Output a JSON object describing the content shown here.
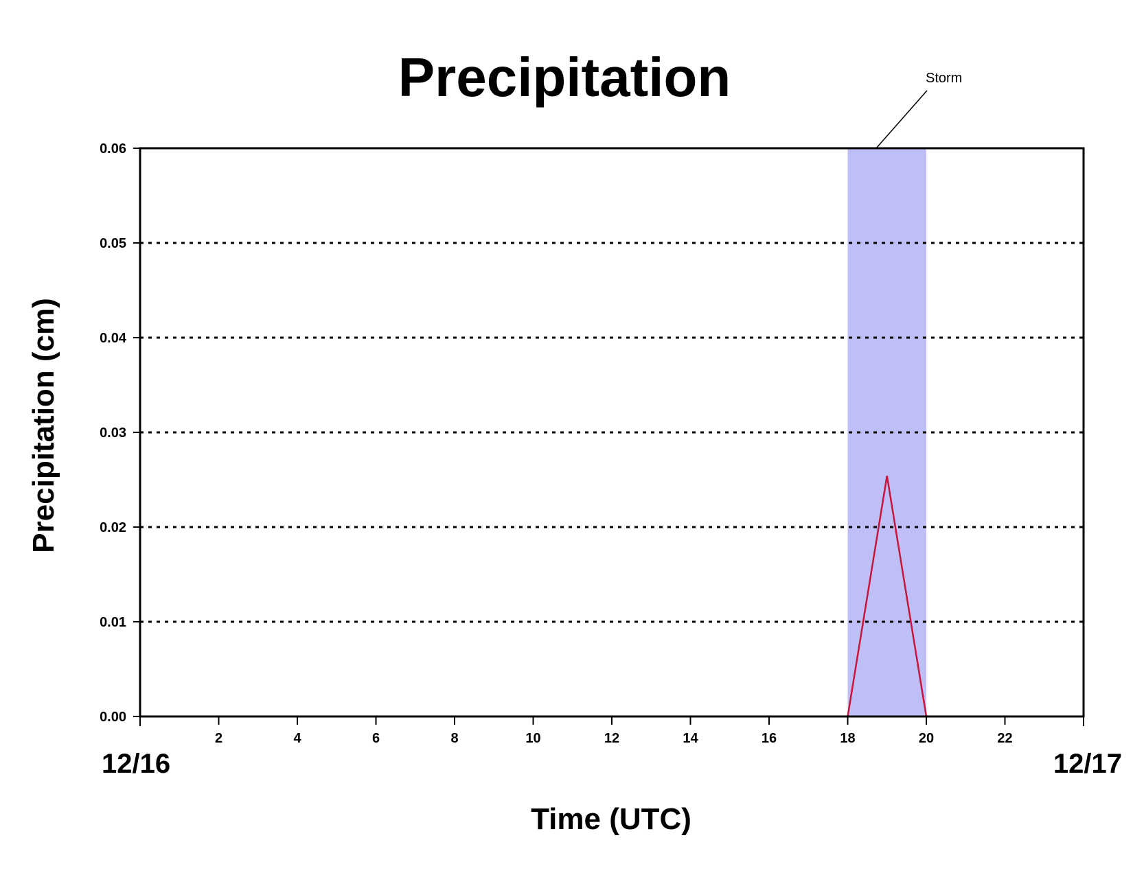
{
  "chart_data": {
    "type": "line",
    "title": "Precipitation",
    "xlabel": "Time (UTC)",
    "ylabel": "Precipitation (cm)",
    "xlim": [
      0,
      24
    ],
    "ylim": [
      0,
      0.06
    ],
    "x_ticks": [
      2,
      4,
      6,
      8,
      10,
      12,
      14,
      16,
      18,
      20,
      22
    ],
    "y_ticks": [
      "0.00",
      "0.01",
      "0.02",
      "0.03",
      "0.04",
      "0.05",
      "0.06"
    ],
    "y_tick_values": [
      0,
      0.01,
      0.02,
      0.03,
      0.04,
      0.05,
      0.06
    ],
    "date_labels": [
      {
        "x": 0,
        "label": "12/16"
      },
      {
        "x": 24,
        "label": "12/17"
      }
    ],
    "grid": {
      "y": true,
      "style": "dotted"
    },
    "shaded_region": {
      "x_start": 18,
      "x_end": 20,
      "label": "Storm",
      "color": "#bfbff7"
    },
    "series": [
      {
        "color": "#c8143c",
        "x": [
          0,
          18,
          19,
          20,
          24
        ],
        "y": [
          0,
          0,
          0.0254,
          0,
          0
        ]
      }
    ]
  }
}
